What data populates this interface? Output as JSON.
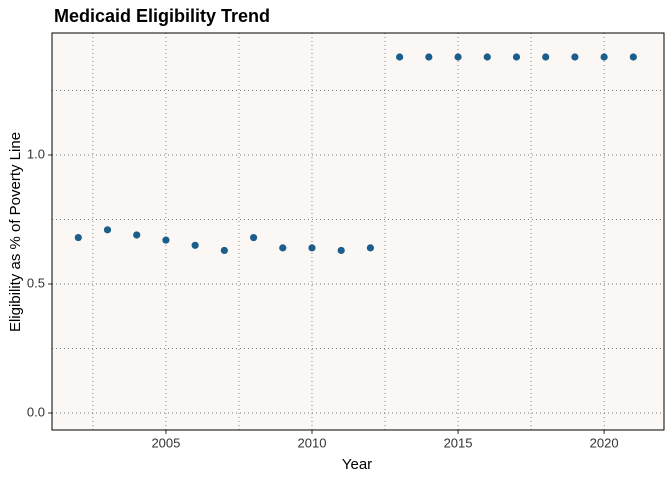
{
  "chart_data": {
    "type": "scatter",
    "title": "Medicaid Eligibility Trend",
    "x_label": "Year",
    "y_label": "Eligibility as % of Poverty Line",
    "x": [
      2002,
      2003,
      2004,
      2005,
      2006,
      2007,
      2008,
      2009,
      2010,
      2011,
      2012,
      2013,
      2014,
      2015,
      2016,
      2017,
      2018,
      2019,
      2020,
      2021
    ],
    "series": [
      {
        "color": "#1b5e8c",
        "values": [
          0.68,
          0.71,
          0.69,
          0.67,
          0.65,
          0.63,
          0.68,
          0.64,
          0.64,
          0.63,
          0.64,
          1.38,
          1.38,
          1.38,
          1.38,
          1.38,
          1.38,
          1.38,
          1.38,
          1.38
        ]
      }
    ],
    "xlim": [
      2001.1,
      2022.05
    ],
    "ylim": [
      -0.066,
      1.473
    ],
    "xticks": [
      2005,
      2010,
      2015,
      2020
    ],
    "yticks": [
      {
        "value": 0,
        "label": "0.0"
      },
      0.5,
      {
        "value": 1,
        "label": "1.0"
      }
    ],
    "xminor": [
      2002.5,
      2007.5,
      2012.5,
      2017.5
    ],
    "yminor": [
      0.25,
      0.75,
      1.25
    ],
    "grid": true,
    "panel_color": "#faf7f4"
  }
}
